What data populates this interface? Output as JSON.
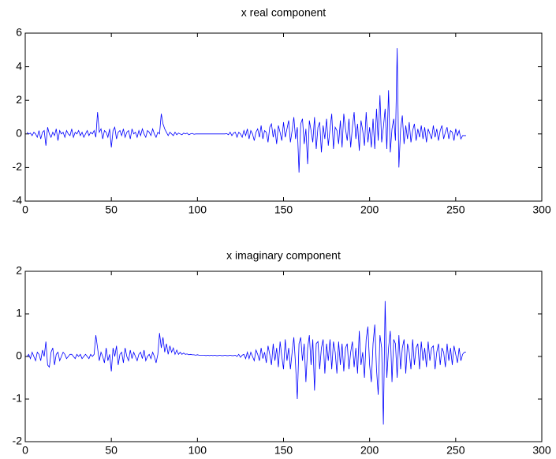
{
  "chart_data": [
    {
      "type": "line",
      "title": "x real component",
      "color": "#0000ff",
      "xlim": [
        0,
        300
      ],
      "xticks": [
        0,
        50,
        100,
        150,
        200,
        250,
        300
      ],
      "ylim": [
        -4,
        6
      ],
      "yticks": [
        -4,
        -2,
        0,
        2,
        4,
        6
      ],
      "x": [
        1,
        2,
        3,
        4,
        5,
        6,
        7,
        8,
        9,
        10,
        11,
        12,
        13,
        14,
        15,
        16,
        17,
        18,
        19,
        20,
        21,
        22,
        23,
        24,
        25,
        26,
        27,
        28,
        29,
        30,
        31,
        32,
        33,
        34,
        35,
        36,
        37,
        38,
        39,
        40,
        41,
        42,
        43,
        44,
        45,
        46,
        47,
        48,
        49,
        50,
        51,
        52,
        53,
        54,
        55,
        56,
        57,
        58,
        59,
        60,
        61,
        62,
        63,
        64,
        65,
        66,
        67,
        68,
        69,
        70,
        71,
        72,
        73,
        74,
        75,
        76,
        77,
        78,
        79,
        80,
        81,
        82,
        83,
        84,
        85,
        86,
        87,
        88,
        89,
        90,
        91,
        92,
        93,
        94,
        95,
        96,
        97,
        98,
        99,
        100,
        101,
        102,
        103,
        104,
        105,
        106,
        107,
        108,
        109,
        110,
        111,
        112,
        113,
        114,
        115,
        116,
        117,
        118,
        119,
        120,
        121,
        122,
        123,
        124,
        125,
        126,
        127,
        128,
        129,
        130,
        131,
        132,
        133,
        134,
        135,
        136,
        137,
        138,
        139,
        140,
        141,
        142,
        143,
        144,
        145,
        146,
        147,
        148,
        149,
        150,
        151,
        152,
        153,
        154,
        155,
        156,
        157,
        158,
        159,
        160,
        161,
        162,
        163,
        164,
        165,
        166,
        167,
        168,
        169,
        170,
        171,
        172,
        173,
        174,
        175,
        176,
        177,
        178,
        179,
        180,
        181,
        182,
        183,
        184,
        185,
        186,
        187,
        188,
        189,
        190,
        191,
        192,
        193,
        194,
        195,
        196,
        197,
        198,
        199,
        200,
        201,
        202,
        203,
        204,
        205,
        206,
        207,
        208,
        209,
        210,
        211,
        212,
        213,
        214,
        215,
        216,
        217,
        218,
        219,
        220,
        221,
        222,
        223,
        224,
        225,
        226,
        227,
        228,
        229,
        230,
        231,
        232,
        233,
        234,
        235,
        236,
        237,
        238,
        239,
        240,
        241,
        242,
        243,
        244,
        245,
        246,
        247,
        248,
        249,
        250,
        251,
        252,
        253,
        254,
        255,
        256
      ],
      "values": [
        0.1,
        0,
        0.05,
        -0.1,
        0.1,
        0,
        -0.2,
        0.2,
        -0.3,
        0.1,
        0.2,
        -0.7,
        0.4,
        0,
        -0.2,
        0.1,
        -0.1,
        0.3,
        -0.4,
        0.2,
        0,
        0.1,
        -0.2,
        0.2,
        0,
        -0.1,
        0.3,
        -0.2,
        0.1,
        0,
        0.2,
        -0.1,
        0.1,
        -0.2,
        0,
        0.2,
        -0.1,
        0.1,
        0,
        0.2,
        -0.2,
        1.3,
        0.1,
        0.3,
        -0.3,
        0.2,
        0.1,
        -0.2,
        0.3,
        -0.8,
        0.2,
        0.4,
        -0.3,
        0.1,
        0.2,
        -0.1,
        0.3,
        -0.2,
        0.1,
        0.2,
        -0.3,
        0.3,
        0,
        0.1,
        -0.2,
        0.2,
        -0.1,
        0.3,
        0,
        -0.2,
        0.2,
        0.1,
        -0.1,
        0.3,
        0,
        -0.2,
        0.1,
        0,
        1.2,
        0.6,
        0.3,
        0.1,
        -0.1,
        0.1,
        0,
        -0.1,
        0.1,
        -0.05,
        0.05,
        0,
        -0.05,
        0.05,
        0,
        0.05,
        -0.05,
        0,
        0.03,
        -0.02,
        0,
        0,
        0,
        0,
        0,
        0,
        0,
        0,
        0,
        0,
        0,
        0,
        0,
        0,
        0,
        0,
        0,
        0,
        0.02,
        -0.05,
        0.1,
        -0.1,
        0.05,
        0.1,
        -0.2,
        0.1,
        0,
        -0.2,
        0.2,
        -0.1,
        0.3,
        -0.3,
        0.2,
        0,
        -0.4,
        0.1,
        0.3,
        -0.2,
        0.5,
        -0.3,
        0.2,
        0.1,
        -0.5,
        0.4,
        0.6,
        -0.2,
        0.3,
        -0.6,
        0.5,
        0.1,
        -0.4,
        0.7,
        -0.2,
        0.3,
        0.8,
        -0.5,
        0.2,
        1.0,
        -0.3,
        0.4,
        -2.3,
        0.6,
        0.9,
        -0.6,
        0.3,
        -1.8,
        0.8,
        0.2,
        -0.5,
        1.0,
        -0.9,
        0.4,
        0.7,
        -1.1,
        0.5,
        -0.3,
        0.9,
        -0.7,
        0.3,
        1.2,
        -0.9,
        0.4,
        0.2,
        -0.6,
        0.8,
        -0.8,
        1.2,
        0.3,
        -0.4,
        0.9,
        -0.8,
        0.4,
        1.3,
        -0.3,
        0.6,
        -1.0,
        0.8,
        0.2,
        -0.7,
        1.3,
        -0.5,
        0.4,
        -0.8,
        0.9,
        -0.9,
        1.5,
        -0.4,
        2.3,
        -0.5,
        0.4,
        1.5,
        -0.9,
        2.6,
        -1.1,
        0.3,
        0.9,
        -0.4,
        5.1,
        -2.0,
        0.3,
        1.1,
        -0.6,
        0.5,
        -0.3,
        0.7,
        -0.5,
        0.2,
        0.6,
        -0.4,
        0.3,
        -0.2,
        0.5,
        -0.3,
        0.4,
        -0.5,
        0.3,
        0,
        -0.3,
        0.5,
        -0.2,
        0.3,
        -0.4,
        0.2,
        0.5,
        -0.3,
        0.1,
        0.4,
        -0.3,
        0.2,
        0.1,
        -0.4,
        0.3,
        -0.1,
        0.2,
        -0.3,
        -0.1,
        -0.1,
        -0.1
      ]
    },
    {
      "type": "line",
      "title": "x imaginary component",
      "color": "#0000ff",
      "xlim": [
        0,
        300
      ],
      "xticks": [
        0,
        50,
        100,
        150,
        200,
        250,
        300
      ],
      "ylim": [
        -2,
        2
      ],
      "yticks": [
        -2,
        -1,
        0,
        1,
        2
      ],
      "x": [
        1,
        2,
        3,
        4,
        5,
        6,
        7,
        8,
        9,
        10,
        11,
        12,
        13,
        14,
        15,
        16,
        17,
        18,
        19,
        20,
        21,
        22,
        23,
        24,
        25,
        26,
        27,
        28,
        29,
        30,
        31,
        32,
        33,
        34,
        35,
        36,
        37,
        38,
        39,
        40,
        41,
        42,
        43,
        44,
        45,
        46,
        47,
        48,
        49,
        50,
        51,
        52,
        53,
        54,
        55,
        56,
        57,
        58,
        59,
        60,
        61,
        62,
        63,
        64,
        65,
        66,
        67,
        68,
        69,
        70,
        71,
        72,
        73,
        74,
        75,
        76,
        77,
        78,
        79,
        80,
        81,
        82,
        83,
        84,
        85,
        86,
        87,
        88,
        89,
        90,
        91,
        92,
        93,
        94,
        95,
        96,
        97,
        98,
        99,
        100,
        101,
        102,
        103,
        104,
        105,
        106,
        107,
        108,
        109,
        110,
        111,
        112,
        113,
        114,
        115,
        116,
        117,
        118,
        119,
        120,
        121,
        122,
        123,
        124,
        125,
        126,
        127,
        128,
        129,
        130,
        131,
        132,
        133,
        134,
        135,
        136,
        137,
        138,
        139,
        140,
        141,
        142,
        143,
        144,
        145,
        146,
        147,
        148,
        149,
        150,
        151,
        152,
        153,
        154,
        155,
        156,
        157,
        158,
        159,
        160,
        161,
        162,
        163,
        164,
        165,
        166,
        167,
        168,
        169,
        170,
        171,
        172,
        173,
        174,
        175,
        176,
        177,
        178,
        179,
        180,
        181,
        182,
        183,
        184,
        185,
        186,
        187,
        188,
        189,
        190,
        191,
        192,
        193,
        194,
        195,
        196,
        197,
        198,
        199,
        200,
        201,
        202,
        203,
        204,
        205,
        206,
        207,
        208,
        209,
        210,
        211,
        212,
        213,
        214,
        215,
        216,
        217,
        218,
        219,
        220,
        221,
        222,
        223,
        224,
        225,
        226,
        227,
        228,
        229,
        230,
        231,
        232,
        233,
        234,
        235,
        236,
        237,
        238,
        239,
        240,
        241,
        242,
        243,
        244,
        245,
        246,
        247,
        248,
        249,
        250,
        251,
        252,
        253,
        254,
        255,
        256
      ],
      "values": [
        0,
        0.05,
        -0.05,
        0.1,
        0,
        -0.1,
        0.1,
        0.05,
        -0.1,
        0.15,
        0,
        0.35,
        -0.2,
        -0.25,
        0.1,
        0.2,
        -0.2,
        0.05,
        0.1,
        -0.1,
        0,
        0.1,
        0.05,
        -0.05,
        0,
        0.05,
        0.05,
        0,
        -0.05,
        0.05,
        0,
        0.05,
        -0.05,
        0,
        0.05,
        0,
        -0.05,
        0.05,
        0,
        0.05,
        0.5,
        0.2,
        -0.1,
        0.1,
        0,
        -0.15,
        0.2,
        -0.1,
        0.05,
        -0.35,
        0.2,
        0,
        0.25,
        -0.2,
        0.05,
        0.1,
        -0.15,
        0.2,
        0,
        -0.1,
        0.15,
        -0.05,
        0.1,
        0,
        -0.1,
        0.05,
        0.1,
        -0.05,
        0.15,
        -0.1,
        0,
        0.05,
        -0.05,
        0.1,
        0,
        -0.15,
        0.05,
        0.55,
        0.2,
        0.45,
        0.1,
        0.3,
        0.05,
        0.25,
        0.1,
        0.2,
        0.05,
        0.15,
        0.05,
        0.1,
        0.05,
        0.08,
        0.05,
        0.06,
        0.04,
        0.05,
        0.04,
        0.04,
        0.03,
        0.04,
        0.03,
        0.03,
        0.03,
        0.03,
        0.02,
        0.03,
        0.02,
        0.03,
        0.02,
        0.03,
        0.02,
        0.02,
        0.03,
        0.02,
        0.02,
        0.03,
        0.02,
        0.02,
        0.03,
        0.02,
        0.02,
        0.03,
        0,
        0.05,
        -0.02,
        0.03,
        0.05,
        -0.05,
        0.1,
        -0.05,
        0.1,
        0,
        -0.1,
        0.15,
        0.05,
        -0.1,
        0.2,
        -0.05,
        0.1,
        -0.15,
        0.25,
        0.05,
        -0.2,
        0.3,
        -0.1,
        0.2,
        -0.25,
        0.35,
        0,
        -0.3,
        0.4,
        -0.1,
        0.2,
        -0.3,
        0.1,
        0.45,
        -0.2,
        -1.0,
        0.3,
        0.45,
        -0.1,
        0.3,
        -0.6,
        0.2,
        0.5,
        -0.2,
        0.4,
        -0.8,
        0.3,
        0.35,
        -0.3,
        0.2,
        0.4,
        -0.4,
        0.3,
        -0.1,
        0.4,
        -0.3,
        0.35,
        0.1,
        -0.4,
        0.35,
        -0.2,
        0.3,
        -0.35,
        0.2,
        0.3,
        -0.3,
        0.1,
        0.35,
        -0.25,
        0.2,
        -0.4,
        0.6,
        -0.2,
        0.1,
        -0.5,
        0.4,
        0.7,
        -0.2,
        -0.6,
        0.3,
        0.75,
        -0.3,
        -0.9,
        0.5,
        0.2,
        -1.6,
        1.3,
        -0.5,
        0.2,
        0.6,
        -0.6,
        0.4,
        0.3,
        -0.5,
        0.5,
        -0.3,
        0.2,
        0.4,
        -0.4,
        0.3,
        0.1,
        -0.3,
        0.4,
        -0.2,
        0.2,
        0.3,
        -0.3,
        0.35,
        -0.1,
        0.2,
        -0.25,
        0.35,
        -0.1,
        0.2,
        0.25,
        -0.3,
        0.1,
        0.3,
        -0.2,
        0.2,
        0.1,
        -0.25,
        0.3,
        -0.1,
        0.2,
        -0.2,
        0.25,
        0.05,
        -0.15,
        0.2,
        -0.1,
        0.05,
        0.1,
        0.1
      ]
    }
  ]
}
